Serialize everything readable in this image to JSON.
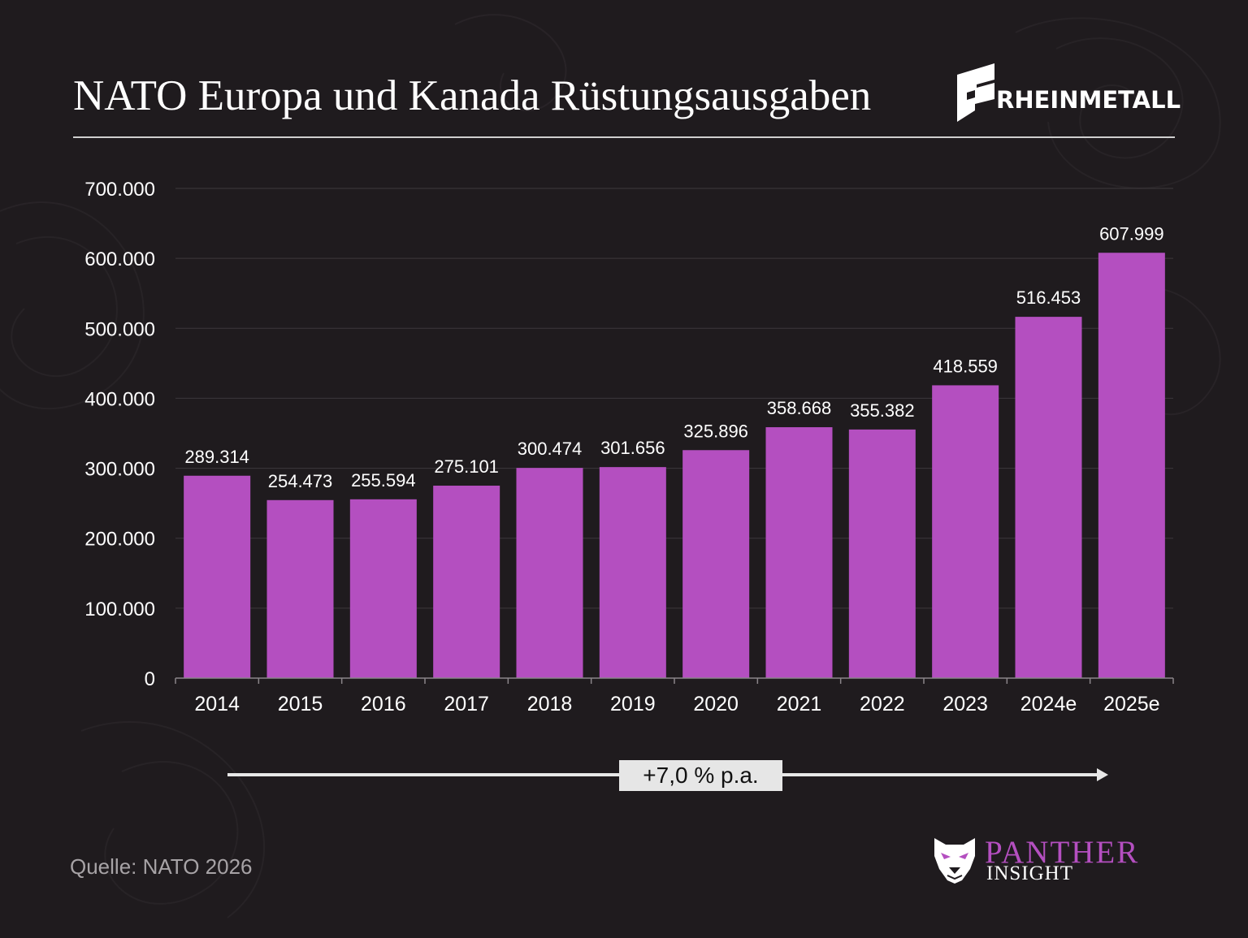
{
  "title": "NATO Europa und Kanada Rüstungsausgaben",
  "brand": {
    "name": "RHEINMETALL",
    "icon": "rheinmetall-logo-icon"
  },
  "growth": {
    "label": "+7,0 % p.a."
  },
  "source": "Quelle: NATO 2026",
  "footer_logo": {
    "name": "PANTHER",
    "sub": "INSIGHT",
    "icon": "panther-head-icon"
  },
  "colors": {
    "background": "#1f1b1e",
    "bar": "#b44fc0",
    "text": "#ffffff",
    "accent": "#b44fc0"
  },
  "chart_data": {
    "type": "bar",
    "title": "",
    "xlabel": "",
    "ylabel": "",
    "categories": [
      "2014",
      "2015",
      "2016",
      "2017",
      "2018",
      "2019",
      "2020",
      "2021",
      "2022",
      "2023",
      "2024e",
      "2025e"
    ],
    "values": [
      289314,
      254473,
      255594,
      275101,
      300474,
      301656,
      325896,
      358668,
      355382,
      418559,
      516453,
      607999
    ],
    "data_labels": [
      "289.314",
      "254.473",
      "255.594",
      "275.101",
      "300.474",
      "301.656",
      "325.896",
      "358.668",
      "355.382",
      "418.559",
      "516.453",
      "607.999"
    ],
    "yticks": [
      0,
      100000,
      200000,
      300000,
      400000,
      500000,
      600000,
      700000
    ],
    "ytick_labels": [
      "0",
      "100.000",
      "200.000",
      "300.000",
      "400.000",
      "500.000",
      "600.000",
      "700.000"
    ],
    "ylim": [
      0,
      700000
    ],
    "grid": true,
    "legend": "none"
  }
}
